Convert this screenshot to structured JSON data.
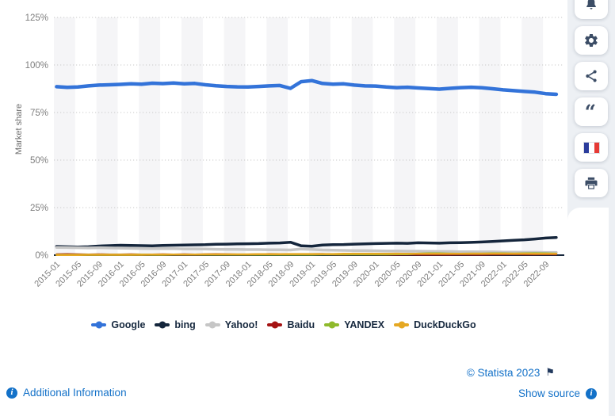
{
  "chart_data": {
    "type": "line",
    "title": "",
    "xlabel": "",
    "ylabel": "Market share",
    "ylim": [
      0,
      125
    ],
    "y_tick_values": [
      0,
      25,
      50,
      75,
      100,
      125
    ],
    "y_ticks": [
      "0%",
      "25%",
      "50%",
      "75%",
      "100%",
      "125%"
    ],
    "grid": "dotted horizontal gridlines, alternating vertical gray bands",
    "legend_position": "bottom",
    "band_color": "#f5f5f7",
    "grid_color": "#c9c9c9",
    "axis_line_color": "#16273c",
    "tick_label_color": "#7e7e7e",
    "x_tick_labels": [
      "2015-01",
      "2015-05",
      "2015-09",
      "2016-01",
      "2016-05",
      "2016-09",
      "2017-01",
      "2017-05",
      "2017-09",
      "2018-01",
      "2018-05",
      "2018-09",
      "2019-01",
      "2019-05",
      "2019-09",
      "2020-01",
      "2020-05",
      "2020-09",
      "2021-01",
      "2021-05",
      "2021-09",
      "2022-01",
      "2022-05",
      "2022-09"
    ],
    "x": [
      "2015-01",
      "2015-03",
      "2015-05",
      "2015-07",
      "2015-09",
      "2015-11",
      "2016-01",
      "2016-03",
      "2016-05",
      "2016-07",
      "2016-09",
      "2016-11",
      "2017-01",
      "2017-03",
      "2017-05",
      "2017-07",
      "2017-09",
      "2017-11",
      "2018-01",
      "2018-03",
      "2018-05",
      "2018-07",
      "2018-09",
      "2018-11",
      "2019-01",
      "2019-03",
      "2019-05",
      "2019-07",
      "2019-09",
      "2019-11",
      "2020-01",
      "2020-03",
      "2020-05",
      "2020-07",
      "2020-09",
      "2020-11",
      "2021-01",
      "2021-03",
      "2021-05",
      "2021-07",
      "2021-09",
      "2021-11",
      "2022-01",
      "2022-03",
      "2022-05",
      "2022-07",
      "2022-09",
      "2022-11"
    ],
    "series": [
      {
        "name": "Google",
        "color": "#3373d9",
        "line_width": 4.5,
        "values": [
          88.6,
          88.2,
          88.4,
          89.0,
          89.4,
          89.6,
          89.8,
          90.1,
          89.9,
          90.4,
          90.2,
          90.5,
          90.1,
          90.3,
          89.6,
          89.1,
          88.7,
          88.5,
          88.4,
          88.7,
          89.0,
          89.2,
          87.7,
          91.2,
          91.8,
          90.3,
          89.9,
          90.1,
          89.4,
          89.0,
          88.9,
          88.4,
          88.1,
          88.3,
          87.9,
          87.6,
          87.3,
          87.7,
          88.1,
          88.3,
          88.0,
          87.5,
          86.9,
          86.5,
          86.1,
          85.7,
          84.9,
          84.6
        ]
      },
      {
        "name": "bing",
        "color": "#15263c",
        "line_width": 3.5,
        "values": [
          4.6,
          4.4,
          4.3,
          4.4,
          4.8,
          5.0,
          5.2,
          5.1,
          5.0,
          4.9,
          5.1,
          5.2,
          5.3,
          5.4,
          5.5,
          5.7,
          5.8,
          5.9,
          6.0,
          6.1,
          6.3,
          6.4,
          6.8,
          4.9,
          4.7,
          5.3,
          5.5,
          5.6,
          5.8,
          5.9,
          6.1,
          6.2,
          6.3,
          6.2,
          6.5,
          6.4,
          6.3,
          6.5,
          6.6,
          6.7,
          6.9,
          7.2,
          7.5,
          7.8,
          8.1,
          8.5,
          9.0,
          9.3
        ]
      },
      {
        "name": "Yahoo!",
        "color": "#c6c6c6",
        "line_width": 3.5,
        "values": [
          4.1,
          4.0,
          3.9,
          3.8,
          3.9,
          3.8,
          3.7,
          3.6,
          3.5,
          3.4,
          3.5,
          3.4,
          3.3,
          3.3,
          3.2,
          3.1,
          3.0,
          3.0,
          2.9,
          2.9,
          2.8,
          2.8,
          2.7,
          3.2,
          3.0,
          2.7,
          2.6,
          2.5,
          2.4,
          2.4,
          2.3,
          2.2,
          2.2,
          2.1,
          2.1,
          2.0,
          1.9,
          1.9,
          1.8,
          1.8,
          1.7,
          1.7,
          1.6,
          1.6,
          1.5,
          1.5,
          1.4,
          1.4
        ]
      },
      {
        "name": "Baidu",
        "color": "#a51313",
        "line_width": 2.5,
        "values": [
          0.4,
          0.5,
          0.4,
          0.3,
          0.4,
          0.3,
          0.3,
          0.4,
          0.3,
          0.3,
          0.4,
          0.3,
          0.4,
          0.3,
          0.4,
          0.5,
          0.4,
          0.3,
          0.3,
          0.4,
          0.6,
          0.5,
          0.4,
          0.4,
          0.5,
          0.6,
          0.4,
          0.3,
          0.5,
          0.4,
          0.4,
          0.3,
          0.3,
          0.4,
          0.3,
          0.3,
          0.3,
          0.3,
          0.4,
          0.3,
          0.3,
          0.4,
          0.4,
          0.5,
          0.4,
          0.4,
          0.5,
          0.4
        ]
      },
      {
        "name": "YANDEX",
        "color": "#8fba2c",
        "line_width": 2.5,
        "values": [
          0.2,
          0.2,
          0.2,
          0.2,
          0.2,
          0.2,
          0.2,
          0.2,
          0.3,
          0.2,
          0.2,
          0.3,
          0.3,
          0.3,
          0.3,
          0.3,
          0.3,
          0.3,
          0.3,
          0.3,
          0.3,
          0.3,
          0.3,
          0.3,
          0.3,
          0.4,
          0.4,
          0.4,
          0.4,
          0.4,
          0.4,
          0.4,
          0.5,
          0.5,
          0.8,
          0.9,
          0.9,
          0.8,
          0.7,
          0.8,
          0.8,
          0.9,
          0.9,
          0.8,
          0.9,
          1.0,
          0.9,
          0.8
        ]
      },
      {
        "name": "DuckDuckGo",
        "color": "#e5a823",
        "line_width": 2.5,
        "values": [
          0.1,
          0.1,
          0.1,
          0.2,
          0.2,
          0.2,
          0.2,
          0.2,
          0.2,
          0.3,
          0.3,
          0.3,
          0.3,
          0.3,
          0.4,
          0.4,
          0.4,
          0.4,
          0.4,
          0.5,
          0.5,
          0.5,
          0.6,
          0.6,
          0.6,
          0.6,
          0.6,
          0.7,
          0.7,
          0.7,
          0.7,
          0.7,
          0.8,
          0.7,
          0.7,
          0.7,
          0.7,
          0.7,
          0.7,
          0.8,
          0.8,
          0.8,
          0.8,
          0.8,
          0.8,
          0.7,
          0.7,
          0.7
        ]
      }
    ]
  },
  "sidebar": {
    "buttons": [
      {
        "name": "notifications",
        "icon": "bell-icon"
      },
      {
        "name": "settings",
        "icon": "gear-icon"
      },
      {
        "name": "share",
        "icon": "share-icon"
      },
      {
        "name": "cite",
        "icon": "quote-icon"
      },
      {
        "name": "country-france",
        "icon": "france-flag-icon"
      },
      {
        "name": "print",
        "icon": "printer-icon"
      }
    ]
  },
  "footer": {
    "additional_info": "Additional Information",
    "copyright": "© Statista 2023",
    "show_source": "Show source",
    "flag_glyph": "⚑",
    "info_glyph": "i",
    "link_color": "#1371c8"
  }
}
